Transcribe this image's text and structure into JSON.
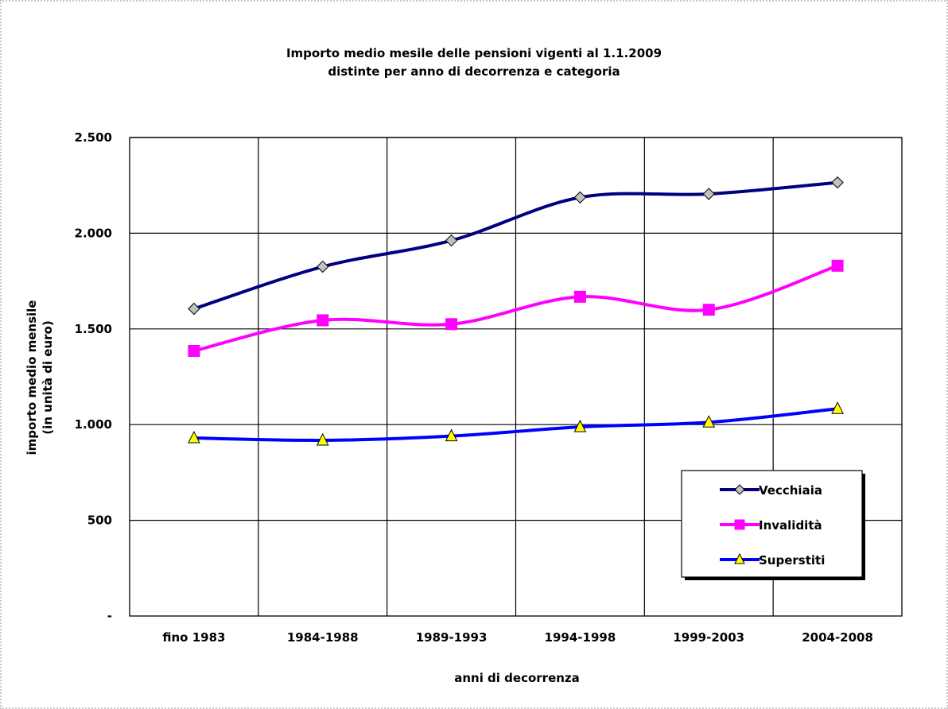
{
  "chart_data": {
    "type": "line",
    "title_line1": "Importo medio mesile delle pensioni vigenti al 1.1.2009",
    "title_line2": "distinte per anno di decorrenza e categoria",
    "xlabel": "anni di decorrenza",
    "ylabel_line1": "importo medio mensile",
    "ylabel_line2": "(in unità di euro)",
    "categories": [
      "fino 1983",
      "1984-1988",
      "1989-1993",
      "1994-1998",
      "1999-2003",
      "2004-2008"
    ],
    "ylim": [
      0,
      2500
    ],
    "yticks": [
      0,
      500,
      1000,
      1500,
      2000,
      2500
    ],
    "ytick_labels": [
      "-",
      "500",
      "1.000",
      "1.500",
      "2.000",
      "2.500"
    ],
    "grid": true,
    "legend_position": "bottom-right",
    "series": [
      {
        "name": "Vecchiaia",
        "color": "#000080",
        "marker": "diamond",
        "marker_color": "#c0c0c0",
        "values": [
          1605,
          1825,
          1962,
          2187,
          2205,
          2265
        ]
      },
      {
        "name": "Invalidità",
        "color": "#ff00ff",
        "marker": "square",
        "marker_color": "#ff00ff",
        "values": [
          1385,
          1545,
          1525,
          1668,
          1600,
          1830
        ]
      },
      {
        "name": "Superstiti",
        "color": "#0000ff",
        "marker": "triangle",
        "marker_color": "#ffff00",
        "values": [
          930,
          918,
          940,
          988,
          1012,
          1083
        ]
      }
    ]
  }
}
